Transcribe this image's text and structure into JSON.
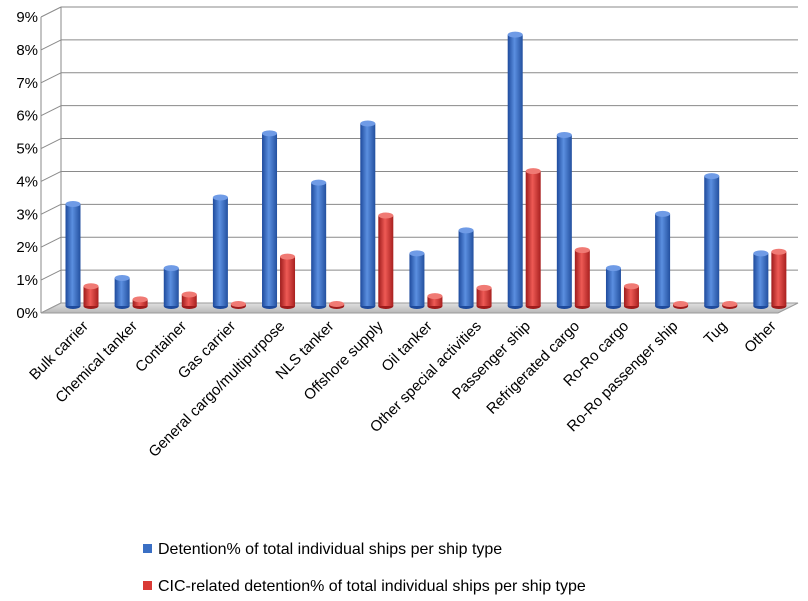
{
  "chart_data": {
    "type": "bar",
    "categories": [
      "Bulk carrier",
      "Chemical tanker",
      "Container",
      "Gas carrier",
      "General cargo/multipurpose",
      "NLS tanker",
      "Offshore supply",
      "Oil tanker",
      "Other special activities",
      "Passenger ship",
      "Refrigerated cargo",
      "Ro-Ro cargo",
      "Ro-Ro passenger ship",
      "Tug",
      "Other"
    ],
    "series": [
      {
        "name": "Detention% of total individual ships per ship type",
        "color": "#3a6fc4",
        "values": [
          3.1,
          0.85,
          1.15,
          3.3,
          5.25,
          3.75,
          5.55,
          1.6,
          2.3,
          8.25,
          5.2,
          1.15,
          2.8,
          3.95,
          1.6
        ]
      },
      {
        "name": "CIC-related detention% of total individual ships per ship type",
        "color": "#d93a35",
        "values": [
          0.6,
          0.2,
          0.35,
          0,
          1.5,
          0,
          2.75,
          0.3,
          0.55,
          4.1,
          1.7,
          0.6,
          0,
          0,
          1.65
        ]
      }
    ],
    "yticks": [
      "0%",
      "1%",
      "2%",
      "3%",
      "4%",
      "5%",
      "6%",
      "7%",
      "8%",
      "9%"
    ],
    "ylim": [
      0,
      9
    ],
    "grid": true,
    "legend_position": "bottom",
    "title": "",
    "xlabel": "",
    "ylabel": ""
  }
}
